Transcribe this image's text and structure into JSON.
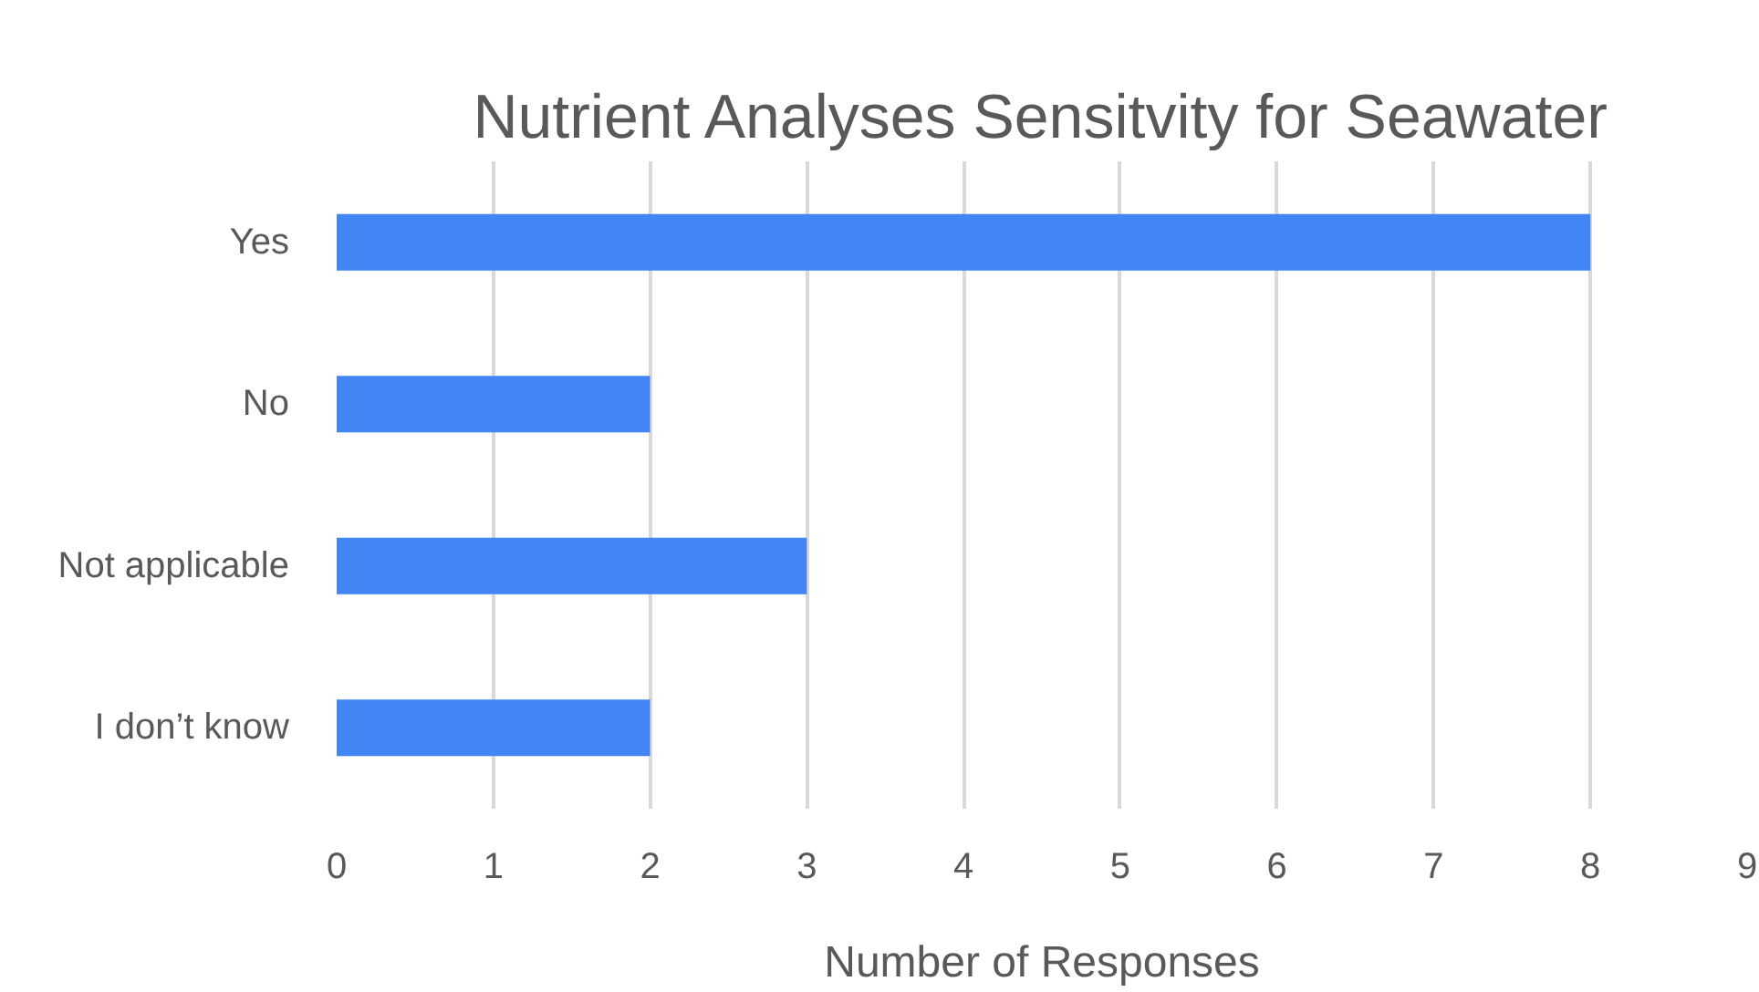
{
  "chart_data": {
    "type": "bar",
    "orientation": "horizontal",
    "title": "Nutrient Analyses Sensitvity for Seawater",
    "xlabel": "Number of Responses",
    "categories": [
      "Yes",
      "No",
      "Not applicable",
      "I don’t know"
    ],
    "series": [
      {
        "color": "#4285f4",
        "values": [
          8,
          2,
          3,
          2
        ]
      }
    ],
    "xlim": [
      0,
      9
    ],
    "xticks": [
      0,
      1,
      2,
      3,
      4,
      5,
      6,
      7,
      8,
      9
    ],
    "grid": "x"
  }
}
